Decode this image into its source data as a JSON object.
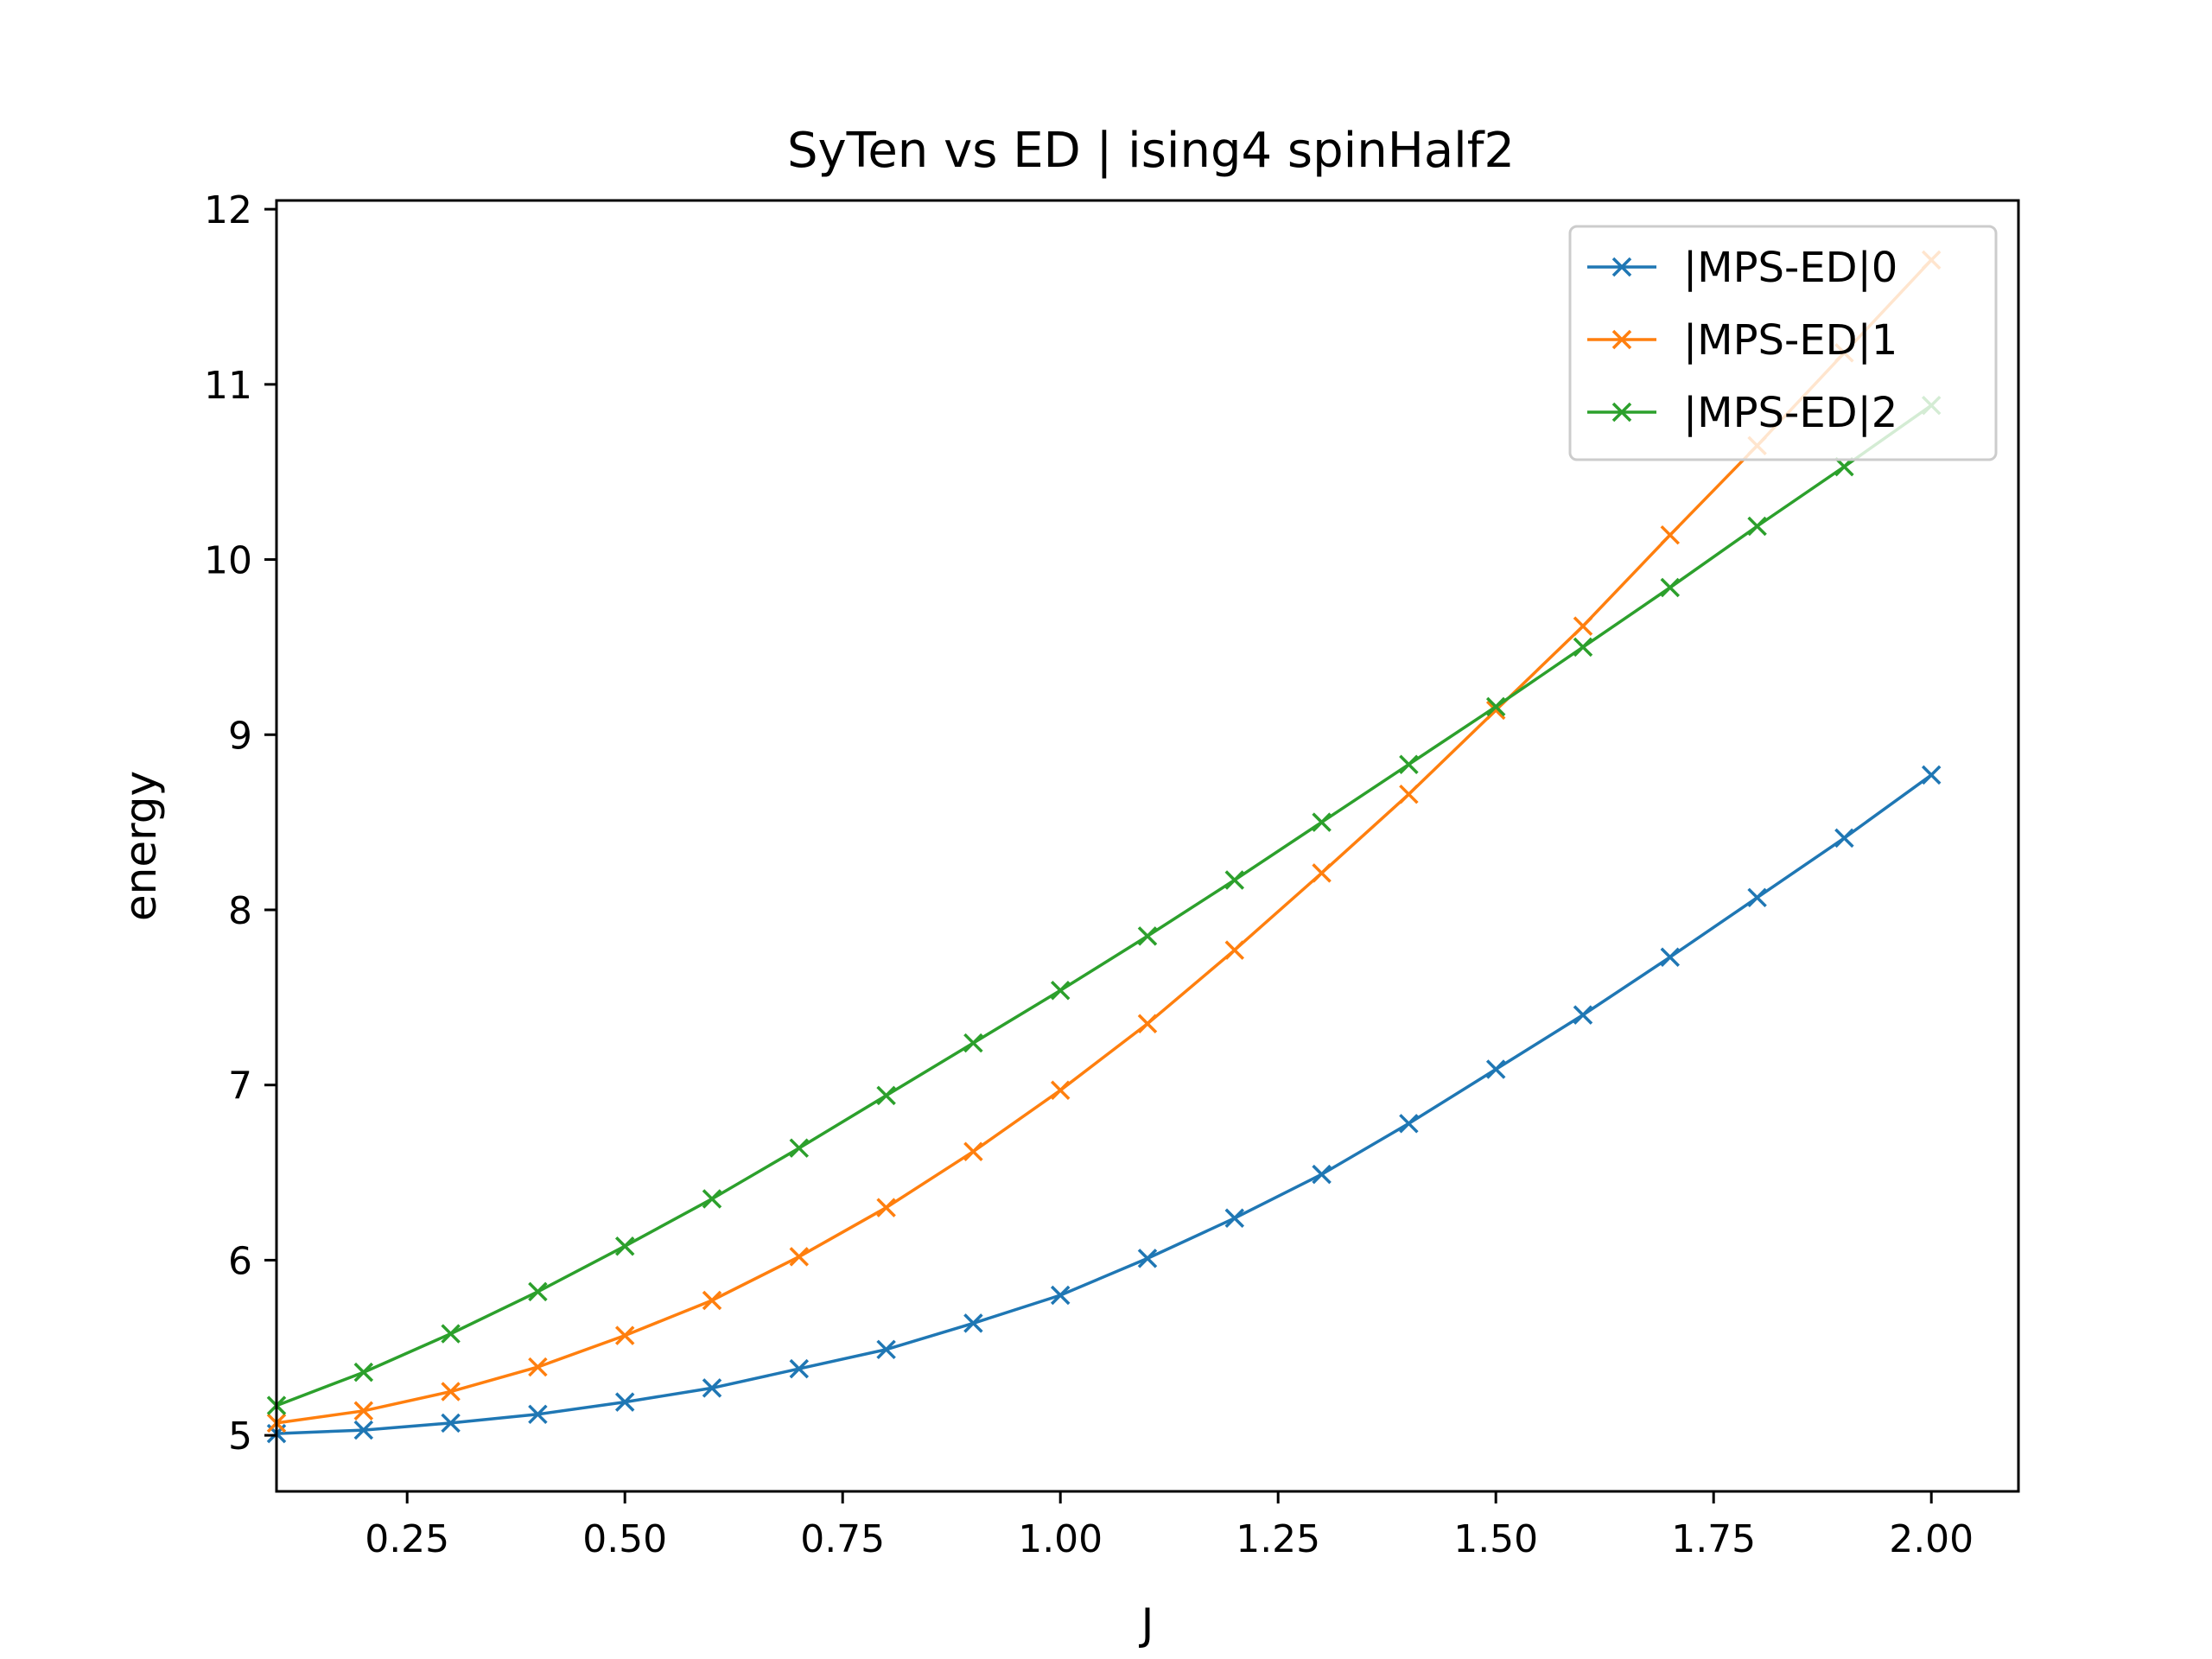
{
  "chart_data": {
    "type": "line",
    "title": "SyTen vs ED | ising4 spinHalf2",
    "xlabel": "J",
    "ylabel": "energy",
    "xlim": [
      0.1,
      2.1
    ],
    "ylim": [
      4.68,
      12.05
    ],
    "xticks": [
      0.25,
      0.5,
      0.75,
      1.0,
      1.25,
      1.5,
      1.75,
      2.0
    ],
    "xtick_labels": [
      "0.25",
      "0.50",
      "0.75",
      "1.00",
      "1.25",
      "1.50",
      "1.75",
      "2.00"
    ],
    "yticks": [
      5,
      6,
      7,
      8,
      9,
      10,
      11,
      12
    ],
    "ytick_labels": [
      "5",
      "6",
      "7",
      "8",
      "9",
      "10",
      "11",
      "12"
    ],
    "marker": "x",
    "grid": false,
    "legend_position": "top-right",
    "x": [
      0.1,
      0.2,
      0.3,
      0.4,
      0.5,
      0.6,
      0.7,
      0.8,
      0.9,
      1.0,
      1.1,
      1.2,
      1.3,
      1.4,
      1.5,
      1.6,
      1.7,
      1.8,
      1.9,
      2.0
    ],
    "series": [
      {
        "name": "|MPS-ED|0",
        "color": "#1f77b4",
        "values": [
          5.01,
          5.03,
          5.07,
          5.12,
          5.19,
          5.27,
          5.38,
          5.49,
          5.64,
          5.8,
          6.01,
          6.24,
          6.49,
          6.78,
          7.09,
          7.4,
          7.73,
          8.07,
          8.41,
          8.77
        ]
      },
      {
        "name": "|MPS-ED|1",
        "color": "#ff7f0e",
        "values": [
          5.07,
          5.14,
          5.25,
          5.39,
          5.57,
          5.77,
          6.02,
          6.3,
          6.62,
          6.97,
          7.35,
          7.77,
          8.21,
          8.66,
          9.14,
          9.62,
          10.14,
          10.65,
          11.18,
          11.71
        ]
      },
      {
        "name": "|MPS-ED|2",
        "color": "#2ca02c",
        "values": [
          5.17,
          5.36,
          5.58,
          5.82,
          6.08,
          6.35,
          6.64,
          6.94,
          7.24,
          7.54,
          7.85,
          8.17,
          8.5,
          8.83,
          9.16,
          9.5,
          9.84,
          10.19,
          10.53,
          10.88
        ]
      }
    ]
  }
}
